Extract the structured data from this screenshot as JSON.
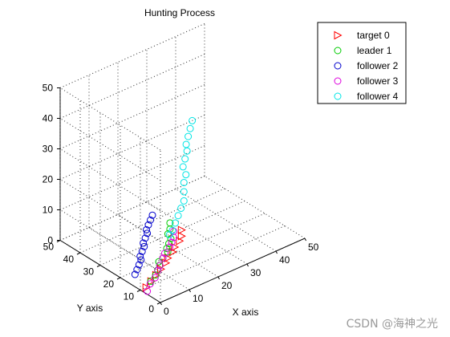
{
  "watermark": "CSDN @海神之光",
  "chart_data": {
    "type": "scatter3d",
    "title": "Hunting Process",
    "xlabel": "X axis",
    "ylabel": "Y axis",
    "zlabel": "",
    "xlim": [
      0,
      50
    ],
    "ylim": [
      0,
      50
    ],
    "zlim": [
      0,
      50
    ],
    "xticks": [
      "0",
      "10",
      "20",
      "30",
      "40",
      "50"
    ],
    "yticks": [
      "0",
      "10",
      "20",
      "30",
      "40",
      "50"
    ],
    "zticks": [
      "0",
      "10",
      "20",
      "30",
      "40",
      "50"
    ],
    "grid": true,
    "legend_position": "top-right",
    "series": [
      {
        "name": "target 0",
        "marker": "triangle-right",
        "color": "#ff0000",
        "points": [
          [
            2,
            10,
            0
          ],
          [
            3,
            9,
            2
          ],
          [
            4,
            8,
            4
          ],
          [
            5,
            7,
            6
          ],
          [
            6,
            6,
            8
          ],
          [
            6,
            5,
            10
          ],
          [
            7,
            4,
            12
          ],
          [
            7,
            3,
            14
          ],
          [
            8,
            2,
            16
          ],
          [
            8,
            1,
            18
          ],
          [
            8,
            1,
            20
          ]
        ]
      },
      {
        "name": "leader 1",
        "marker": "circle",
        "color": "#00cc00",
        "points": [
          [
            5,
            12,
            0
          ],
          [
            6,
            11,
            2
          ],
          [
            6,
            10,
            4
          ],
          [
            6,
            9,
            6
          ],
          [
            5,
            8,
            8
          ],
          [
            5,
            6,
            10
          ],
          [
            6,
            5,
            12
          ],
          [
            5,
            4,
            14
          ],
          [
            5,
            3,
            16
          ],
          [
            5,
            2,
            18
          ],
          [
            4,
            2,
            20
          ],
          [
            4,
            1,
            22
          ],
          [
            4,
            1,
            24
          ]
        ]
      },
      {
        "name": "follower 2",
        "marker": "circle",
        "color": "#0000cc",
        "points": [
          [
            3,
            17,
            1
          ],
          [
            3,
            16,
            3
          ],
          [
            3,
            15,
            5
          ],
          [
            3,
            14,
            7
          ],
          [
            2,
            13,
            9
          ],
          [
            2,
            12,
            11
          ],
          [
            2,
            11,
            13
          ],
          [
            1,
            10,
            15
          ],
          [
            1,
            9,
            17
          ],
          [
            1,
            8,
            19
          ],
          [
            0,
            7,
            21
          ],
          [
            0,
            6,
            23
          ],
          [
            0,
            5,
            25
          ],
          [
            0,
            4,
            27
          ]
        ]
      },
      {
        "name": "follower 3",
        "marker": "circle",
        "color": "#dd00dd",
        "points": [
          [
            1,
            8,
            0
          ],
          [
            2,
            8,
            2
          ],
          [
            3,
            7,
            4
          ],
          [
            4,
            7,
            6
          ],
          [
            4,
            6,
            8
          ],
          [
            5,
            6,
            10
          ],
          [
            5,
            5,
            12
          ],
          [
            6,
            4,
            14
          ],
          [
            6,
            3,
            16
          ],
          [
            6,
            2,
            18
          ],
          [
            6,
            2,
            20
          ]
        ]
      },
      {
        "name": "follower 4",
        "marker": "circle",
        "color": "#00e5e5",
        "points": [
          [
            8,
            7,
            16
          ],
          [
            9,
            7,
            17
          ],
          [
            10,
            7,
            19
          ],
          [
            11,
            7,
            21
          ],
          [
            12,
            7,
            23
          ],
          [
            13,
            7,
            25
          ],
          [
            13,
            7,
            28
          ],
          [
            13,
            7,
            31
          ],
          [
            13,
            6,
            34
          ],
          [
            12,
            6,
            37
          ],
          [
            12,
            5,
            40
          ],
          [
            12,
            4,
            43
          ],
          [
            11,
            3,
            46
          ],
          [
            11,
            2,
            49
          ],
          [
            11,
            1,
            52
          ],
          [
            11,
            0,
            55
          ]
        ]
      }
    ]
  }
}
